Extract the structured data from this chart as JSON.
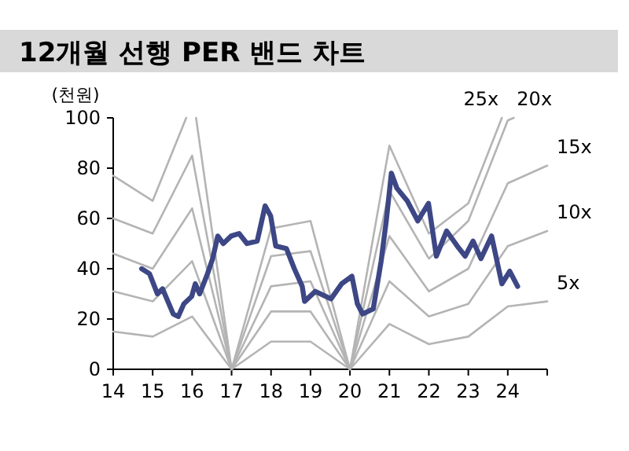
{
  "chart_data": {
    "type": "line",
    "title": "12개월 선행 PER 밴드 차트",
    "ylabel": "(천원)",
    "xlim": [
      14,
      25
    ],
    "ylim": [
      0,
      100
    ],
    "xticks": [
      14,
      15,
      16,
      17,
      18,
      19,
      20,
      21,
      22,
      23,
      24,
      {
        "value": 25,
        "label": null
      }
    ],
    "yticks": [
      0,
      20,
      40,
      60,
      80,
      100
    ],
    "marker": "none",
    "line_style": "solid",
    "series": [
      {
        "name": "5x",
        "color": "#b4b4b4",
        "x": [
          14,
          15,
          16,
          17,
          18,
          19,
          20,
          21,
          22,
          23,
          24,
          25
        ],
        "values": [
          15,
          13,
          21,
          0,
          11,
          11,
          0,
          18,
          10,
          13,
          25,
          27
        ]
      },
      {
        "name": "10x",
        "color": "#b4b4b4",
        "x": [
          14,
          15,
          16,
          17,
          18,
          19,
          20,
          21,
          22,
          23,
          24,
          25
        ],
        "values": [
          31,
          27,
          43,
          0,
          23,
          23,
          0,
          35,
          21,
          26,
          49,
          55
        ]
      },
      {
        "name": "15x",
        "color": "#b4b4b4",
        "x": [
          14,
          15,
          16,
          17,
          18,
          19,
          20,
          21,
          22,
          23,
          24,
          25
        ],
        "values": [
          46,
          40,
          64,
          0,
          33,
          35,
          0,
          53,
          31,
          40,
          74,
          81
        ]
      },
      {
        "name": "20x",
        "color": "#b4b4b4",
        "x": [
          14,
          15,
          16,
          17,
          18,
          19,
          20,
          21,
          22,
          23,
          24,
          24.15
        ],
        "values": [
          60,
          54,
          85,
          0,
          45,
          47,
          0,
          71,
          44,
          59,
          99,
          100
        ]
      },
      {
        "name": "25x",
        "color": "#b4b4b4",
        "x": [
          14,
          15,
          15.85,
          16.1,
          17,
          18,
          19,
          20,
          21,
          22,
          23,
          23.85
        ],
        "values": [
          77,
          67,
          100,
          100,
          0,
          56,
          59,
          0,
          89,
          54,
          66,
          100
        ]
      },
      {
        "color": "#3d4785",
        "x": [
          14.72,
          14.92,
          15.12,
          15.25,
          15.52,
          15.65,
          15.79,
          15.99,
          16.08,
          16.19,
          16.39,
          16.52,
          16.65,
          16.79,
          16.99,
          17.19,
          17.39,
          17.65,
          17.85,
          17.99,
          18.12,
          18.39,
          18.59,
          18.79,
          18.85,
          19.12,
          19.52,
          19.79,
          20.05,
          20.19,
          20.32,
          20.59,
          20.79,
          20.92,
          21.05,
          21.19,
          21.45,
          21.72,
          21.99,
          22.19,
          22.45,
          22.72,
          22.92,
          23.12,
          23.32,
          23.59,
          23.85,
          24.05,
          24.25
        ],
        "values": [
          40,
          38,
          30,
          32,
          22,
          21,
          26,
          29,
          34,
          30,
          38,
          44,
          53,
          50,
          53,
          54,
          50,
          51,
          65,
          61,
          49,
          48,
          40,
          33,
          27,
          31,
          28,
          34,
          37,
          26,
          22,
          24,
          43,
          59,
          78,
          72,
          67,
          59,
          66,
          45,
          55,
          49,
          45,
          51,
          44,
          53,
          34,
          39,
          33
        ]
      }
    ]
  }
}
